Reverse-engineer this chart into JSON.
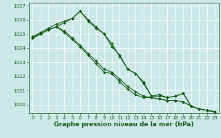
{
  "bg_color": "#cce8e8",
  "grid_color": "#ffffff",
  "line_color": "#1a5c1a",
  "marker_color": "#1a5c1a",
  "xlabel": "Graphe pression niveau de la mer (hPa)",
  "xlabel_fontsize": 6.5,
  "ylim": [
    1019.4,
    1027.2
  ],
  "xlim": [
    -0.5,
    23.5
  ],
  "yticks": [
    1020,
    1021,
    1022,
    1023,
    1024,
    1025,
    1026,
    1027
  ],
  "xticks": [
    0,
    1,
    2,
    3,
    4,
    5,
    6,
    7,
    8,
    9,
    10,
    11,
    12,
    13,
    14,
    15,
    16,
    17,
    18,
    19,
    20,
    21,
    22,
    23
  ],
  "series": [
    [
      1024.8,
      1025.0,
      1025.3,
      1025.5,
      1025.8,
      1026.1,
      1026.6,
      1025.9,
      1025.4,
      1025.0,
      1024.3,
      1023.4,
      1022.5,
      1022.2,
      1021.5,
      1020.6,
      1020.6,
      1020.5,
      1020.6,
      1020.8,
      1019.9,
      1019.7,
      1019.6,
      1019.5
    ],
    [
      1024.8,
      1025.1,
      1025.4,
      1025.7,
      1025.9,
      1026.1,
      1026.6,
      1026.0,
      1025.5,
      1025.0,
      1024.1,
      1023.5,
      1022.5,
      1022.2,
      1021.6,
      1020.6,
      1020.7,
      1020.5,
      1020.6,
      1020.8,
      1019.9,
      1019.7,
      1019.6,
      1019.5
    ],
    [
      1024.7,
      1025.0,
      1025.3,
      1025.5,
      1025.1,
      1024.6,
      1024.1,
      1023.5,
      1022.9,
      1022.3,
      1022.2,
      1021.6,
      1021.1,
      1020.7,
      1020.5,
      1020.5,
      1020.4,
      1020.3,
      1020.3,
      1020.2,
      1019.9,
      1019.7,
      1019.6,
      1019.5
    ],
    [
      1024.7,
      1025.0,
      1025.3,
      1025.5,
      1025.2,
      1024.7,
      1024.2,
      1023.6,
      1023.1,
      1022.5,
      1022.3,
      1021.8,
      1021.3,
      1020.9,
      1020.6,
      1020.5,
      1020.4,
      1020.3,
      1020.3,
      1020.2,
      1019.9,
      1019.7,
      1019.6,
      1019.5
    ]
  ],
  "marker_series": [
    0,
    1,
    2,
    3
  ],
  "lw": 0.8,
  "markersize": 2.0
}
